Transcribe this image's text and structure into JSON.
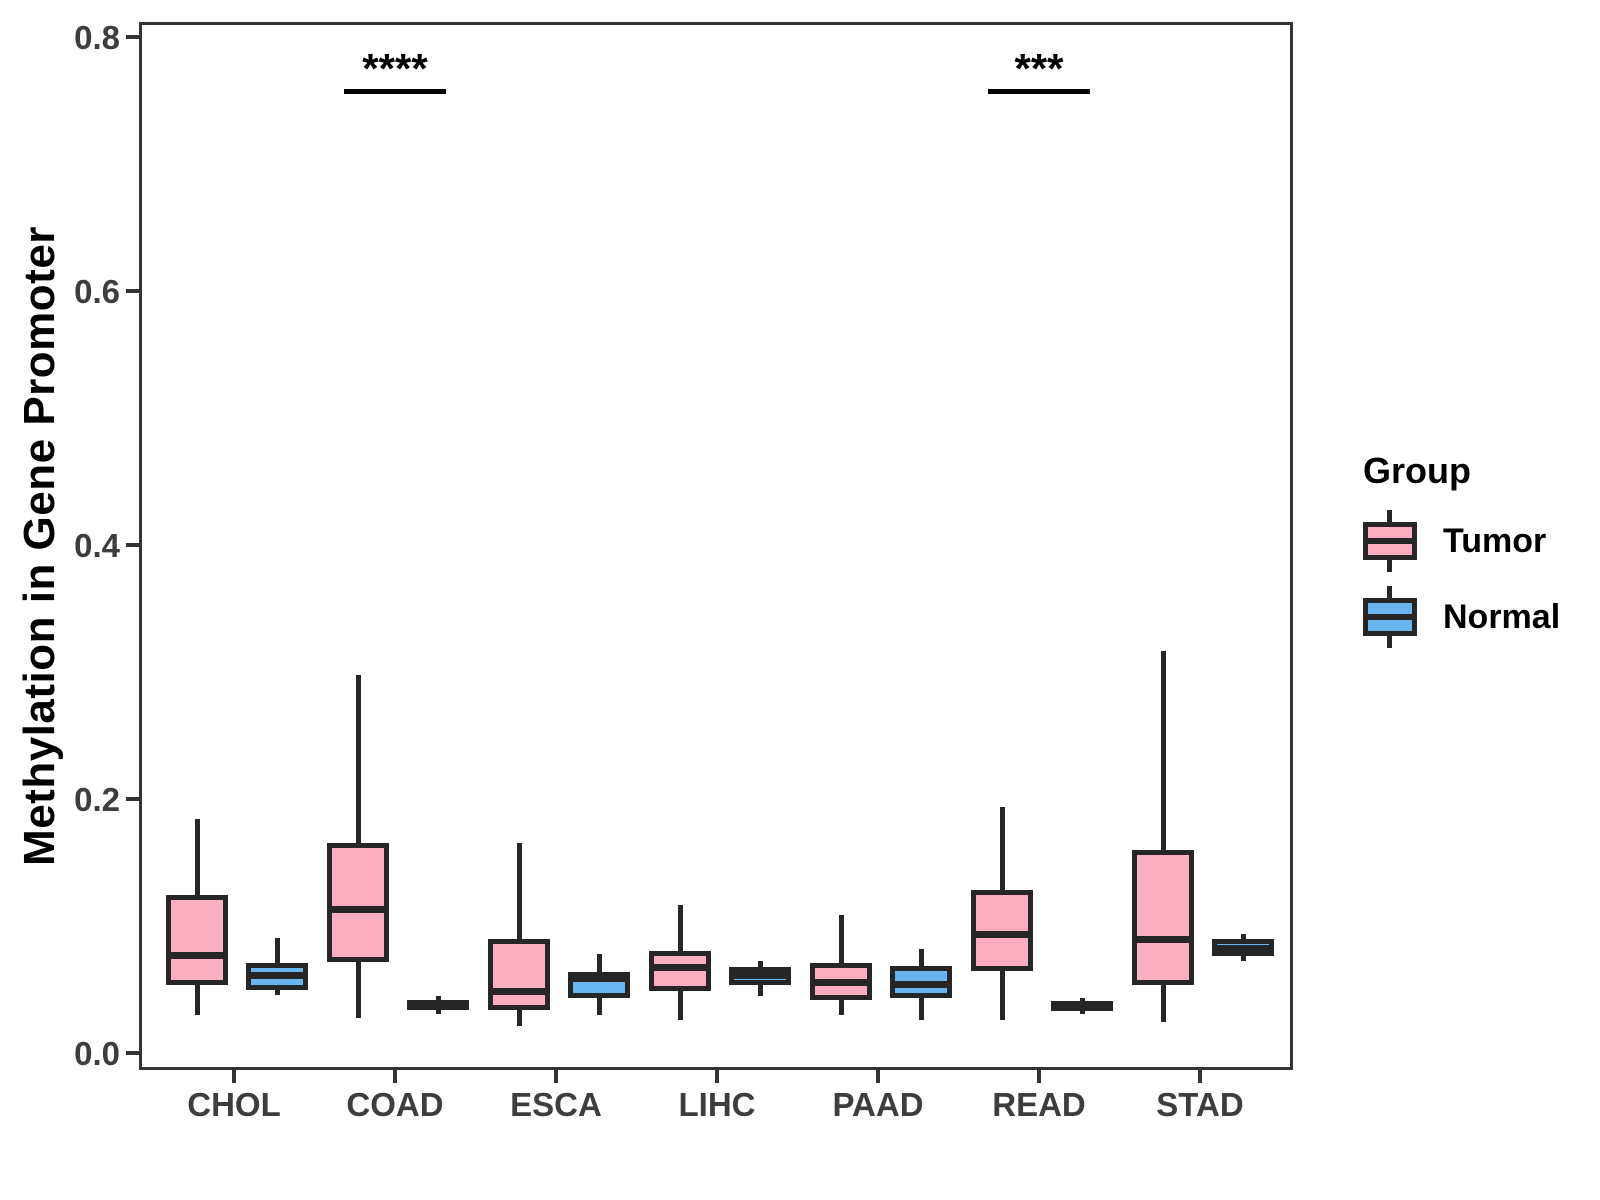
{
  "chart_data": {
    "type": "boxplot",
    "title": "",
    "xlabel": "",
    "ylabel": "Methylation in Gene Promoter",
    "ylim": [
      0.0,
      0.8
    ],
    "yticks": [
      0.0,
      0.2,
      0.4,
      0.6,
      0.8
    ],
    "ytick_labels": [
      "0.0",
      "0.2",
      "0.4",
      "0.6",
      "0.8"
    ],
    "grid": false,
    "categories": [
      "CHOL",
      "COAD",
      "ESCA",
      "LIHC",
      "PAAD",
      "READ",
      "STAD"
    ],
    "series": [
      {
        "name": "Tumor",
        "color": "#FBAEC1",
        "boxes": [
          {
            "whisker_low": 0.032,
            "q1": 0.056,
            "median": 0.079,
            "q3": 0.127,
            "whisker_high": 0.187
          },
          {
            "whisker_low": 0.03,
            "q1": 0.074,
            "median": 0.115,
            "q3": 0.168,
            "whisker_high": 0.3
          },
          {
            "whisker_low": 0.024,
            "q1": 0.036,
            "median": 0.051,
            "q3": 0.092,
            "whisker_high": 0.168
          },
          {
            "whisker_low": 0.028,
            "q1": 0.051,
            "median": 0.07,
            "q3": 0.083,
            "whisker_high": 0.119
          },
          {
            "whisker_low": 0.032,
            "q1": 0.044,
            "median": 0.058,
            "q3": 0.073,
            "whisker_high": 0.111
          },
          {
            "whisker_low": 0.028,
            "q1": 0.067,
            "median": 0.096,
            "q3": 0.131,
            "whisker_high": 0.196
          },
          {
            "whisker_low": 0.027,
            "q1": 0.056,
            "median": 0.092,
            "q3": 0.162,
            "whisker_high": 0.319
          }
        ]
      },
      {
        "name": "Normal",
        "color": "#69B5EF",
        "boxes": [
          {
            "whisker_low": 0.048,
            "q1": 0.052,
            "median": 0.063,
            "q3": 0.073,
            "whisker_high": 0.093
          },
          {
            "whisker_low": 0.033,
            "q1": 0.036,
            "median": 0.04,
            "q3": 0.044,
            "whisker_high": 0.047
          },
          {
            "whisker_low": 0.032,
            "q1": 0.046,
            "median": 0.061,
            "q3": 0.066,
            "whisker_high": 0.08
          },
          {
            "whisker_low": 0.047,
            "q1": 0.056,
            "median": 0.063,
            "q3": 0.07,
            "whisker_high": 0.075
          },
          {
            "whisker_low": 0.028,
            "q1": 0.046,
            "median": 0.056,
            "q3": 0.071,
            "whisker_high": 0.084
          },
          {
            "whisker_low": 0.033,
            "q1": 0.036,
            "median": 0.04,
            "q3": 0.043,
            "whisker_high": 0.046
          },
          {
            "whisker_low": 0.075,
            "q1": 0.079,
            "median": 0.085,
            "q3": 0.092,
            "whisker_high": 0.096
          }
        ]
      }
    ],
    "significance": [
      {
        "category": "COAD",
        "label": "****"
      },
      {
        "category": "READ",
        "label": "***"
      }
    ],
    "legend": {
      "title": "Group",
      "position": "right",
      "entries": [
        "Tumor",
        "Normal"
      ]
    }
  },
  "colors": {
    "tumor": "#FBAEC1",
    "normal": "#69B5EF",
    "stroke": "#262626",
    "axis": "#333333",
    "tick_text": "#3d3d3d"
  }
}
